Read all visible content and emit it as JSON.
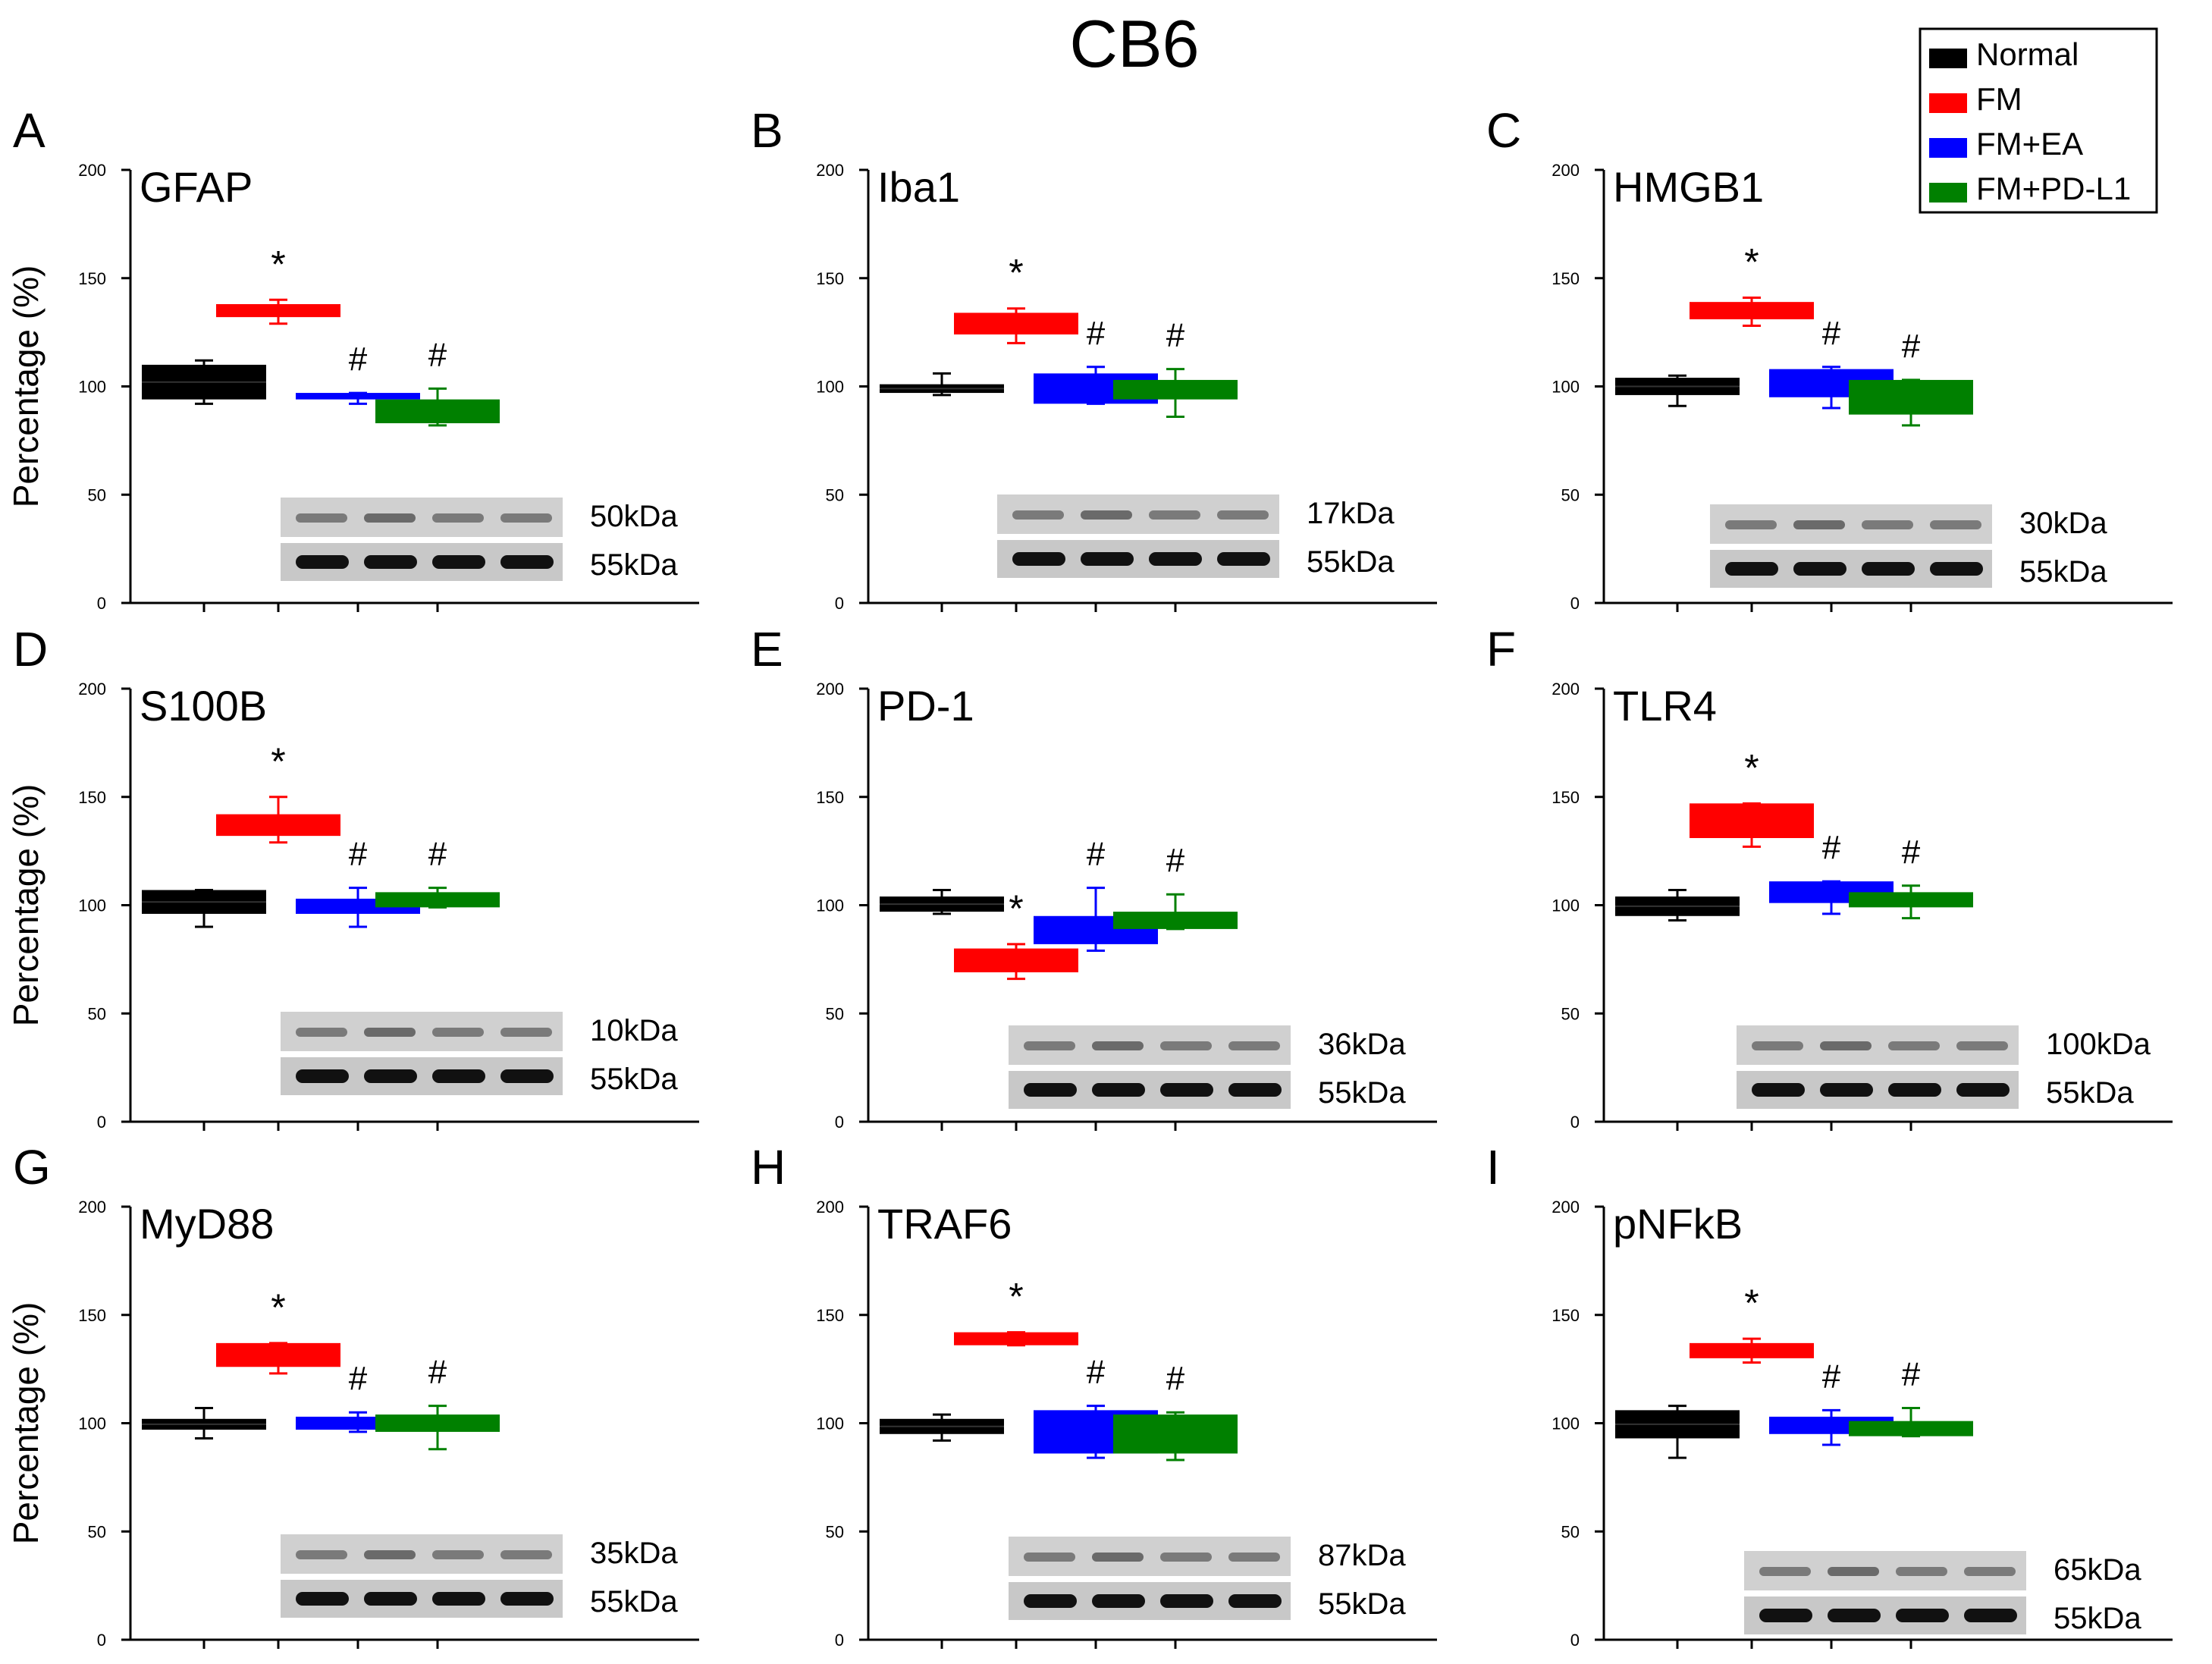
{
  "figure": {
    "title": "CB6",
    "legend": {
      "placement": "top-right",
      "items": [
        {
          "label": "Normal",
          "color": "#000000"
        },
        {
          "label": "FM",
          "color": "#ff0000"
        },
        {
          "label": "FM+EA",
          "color": "#0000ff"
        },
        {
          "label": "FM+PD-L1",
          "color": "#008000"
        }
      ]
    }
  },
  "chart_data": [
    {
      "type": "bar",
      "panel": "A",
      "title": "GFAP",
      "ylabel": "Percentage (%)",
      "ylim": [
        0,
        200
      ],
      "yticks": [
        0,
        50,
        100,
        150,
        200
      ],
      "categories": [
        "Normal",
        "FM",
        "FM+EA",
        "FM+PD-L1"
      ],
      "boxes": [
        [
          94,
          110
        ],
        [
          132,
          138
        ],
        [
          94,
          97
        ],
        [
          83,
          94
        ]
      ],
      "errors": [
        [
          92,
          112
        ],
        [
          129,
          140
        ],
        [
          92,
          97
        ],
        [
          82,
          99
        ]
      ],
      "marks": [
        "",
        "*",
        "#",
        "#"
      ],
      "blot_labels": [
        "50kDa",
        "55kDa"
      ]
    },
    {
      "type": "bar",
      "panel": "B",
      "title": "Iba1",
      "ylabel": "",
      "ylim": [
        0,
        200
      ],
      "yticks": [
        0,
        50,
        100,
        150,
        200
      ],
      "categories": [
        "Normal",
        "FM",
        "FM+EA",
        "FM+PD-L1"
      ],
      "boxes": [
        [
          97,
          101
        ],
        [
          124,
          134
        ],
        [
          92,
          106
        ],
        [
          94,
          103
        ]
      ],
      "errors": [
        [
          96,
          106
        ],
        [
          120,
          136
        ],
        [
          92,
          109
        ],
        [
          86,
          108
        ]
      ],
      "marks": [
        "",
        "*",
        "#",
        "#"
      ],
      "blot_labels": [
        "17kDa",
        "55kDa"
      ]
    },
    {
      "type": "bar",
      "panel": "C",
      "title": "HMGB1",
      "ylabel": "",
      "ylim": [
        0,
        200
      ],
      "yticks": [
        0,
        50,
        100,
        150,
        200
      ],
      "categories": [
        "Normal",
        "FM",
        "FM+EA",
        "FM+PD-L1"
      ],
      "boxes": [
        [
          96,
          104
        ],
        [
          131,
          139
        ],
        [
          95,
          108
        ],
        [
          87,
          103
        ]
      ],
      "errors": [
        [
          91,
          105
        ],
        [
          128,
          141
        ],
        [
          90,
          109
        ],
        [
          82,
          103
        ]
      ],
      "marks": [
        "",
        "*",
        "#",
        "#"
      ],
      "blot_labels": [
        "30kDa",
        "55kDa"
      ]
    },
    {
      "type": "bar",
      "panel": "D",
      "title": "S100B",
      "ylabel": "Percentage (%)",
      "ylim": [
        0,
        200
      ],
      "yticks": [
        0,
        50,
        100,
        150,
        200
      ],
      "categories": [
        "Normal",
        "FM",
        "FM+EA",
        "FM+PD-L1"
      ],
      "boxes": [
        [
          96,
          107
        ],
        [
          132,
          142
        ],
        [
          96,
          103
        ],
        [
          99,
          106
        ]
      ],
      "errors": [
        [
          90,
          107
        ],
        [
          129,
          150
        ],
        [
          90,
          108
        ],
        [
          99,
          108
        ]
      ],
      "marks": [
        "",
        "*",
        "#",
        "#"
      ],
      "blot_labels": [
        "10kDa",
        "55kDa"
      ]
    },
    {
      "type": "bar",
      "panel": "E",
      "title": "PD-1",
      "ylabel": "",
      "ylim": [
        0,
        200
      ],
      "yticks": [
        0,
        50,
        100,
        150,
        200
      ],
      "categories": [
        "Normal",
        "FM",
        "FM+EA",
        "FM+PD-L1"
      ],
      "boxes": [
        [
          97,
          104
        ],
        [
          69,
          80
        ],
        [
          82,
          95
        ],
        [
          89,
          97
        ]
      ],
      "errors": [
        [
          96,
          107
        ],
        [
          66,
          82
        ],
        [
          79,
          108
        ],
        [
          89,
          105
        ]
      ],
      "marks": [
        "",
        "*",
        "#",
        "#"
      ],
      "blot_labels": [
        "36kDa",
        "55kDa"
      ]
    },
    {
      "type": "bar",
      "panel": "F",
      "title": "TLR4",
      "ylabel": "",
      "ylim": [
        0,
        200
      ],
      "yticks": [
        0,
        50,
        100,
        150,
        200
      ],
      "categories": [
        "Normal",
        "FM",
        "FM+EA",
        "FM+PD-L1"
      ],
      "boxes": [
        [
          95,
          104
        ],
        [
          131,
          147
        ],
        [
          101,
          111
        ],
        [
          99,
          106
        ]
      ],
      "errors": [
        [
          93,
          107
        ],
        [
          127,
          147
        ],
        [
          96,
          111
        ],
        [
          94,
          109
        ]
      ],
      "marks": [
        "",
        "*",
        "#",
        "#"
      ],
      "blot_labels": [
        "100kDa",
        "55kDa"
      ]
    },
    {
      "type": "bar",
      "panel": "G",
      "title": "MyD88",
      "ylabel": "Percentage (%)",
      "ylim": [
        0,
        200
      ],
      "yticks": [
        0,
        50,
        100,
        150,
        200
      ],
      "categories": [
        "Normal",
        "FM",
        "FM+EA",
        "FM+PD-L1"
      ],
      "boxes": [
        [
          97,
          102
        ],
        [
          126,
          137
        ],
        [
          97,
          103
        ],
        [
          96,
          104
        ]
      ],
      "errors": [
        [
          93,
          107
        ],
        [
          123,
          137
        ],
        [
          96,
          105
        ],
        [
          88,
          108
        ]
      ],
      "marks": [
        "",
        "*",
        "#",
        "#"
      ],
      "blot_labels": [
        "35kDa",
        "55kDa"
      ]
    },
    {
      "type": "bar",
      "panel": "H",
      "title": "TRAF6",
      "ylabel": "",
      "ylim": [
        0,
        200
      ],
      "yticks": [
        0,
        50,
        100,
        150,
        200
      ],
      "categories": [
        "Normal",
        "FM",
        "FM+EA",
        "FM+PD-L1"
      ],
      "boxes": [
        [
          95,
          102
        ],
        [
          136,
          142
        ],
        [
          86,
          106
        ],
        [
          86,
          104
        ]
      ],
      "errors": [
        [
          92,
          104
        ],
        [
          136,
          142
        ],
        [
          84,
          108
        ],
        [
          83,
          105
        ]
      ],
      "marks": [
        "",
        "*",
        "#",
        "#"
      ],
      "blot_labels": [
        "87kDa",
        "55kDa"
      ]
    },
    {
      "type": "bar",
      "panel": "I",
      "title": "pNFkB",
      "ylabel": "",
      "ylim": [
        0,
        200
      ],
      "yticks": [
        0,
        50,
        100,
        150,
        200
      ],
      "categories": [
        "Normal",
        "FM",
        "FM+EA",
        "FM+PD-L1"
      ],
      "boxes": [
        [
          93,
          106
        ],
        [
          130,
          137
        ],
        [
          95,
          103
        ],
        [
          94,
          101
        ]
      ],
      "errors": [
        [
          84,
          108
        ],
        [
          128,
          139
        ],
        [
          90,
          106
        ],
        [
          94,
          107
        ]
      ],
      "marks": [
        "",
        "*",
        "#",
        "#"
      ],
      "blot_labels": [
        "65kDa",
        "55kDa"
      ]
    }
  ]
}
